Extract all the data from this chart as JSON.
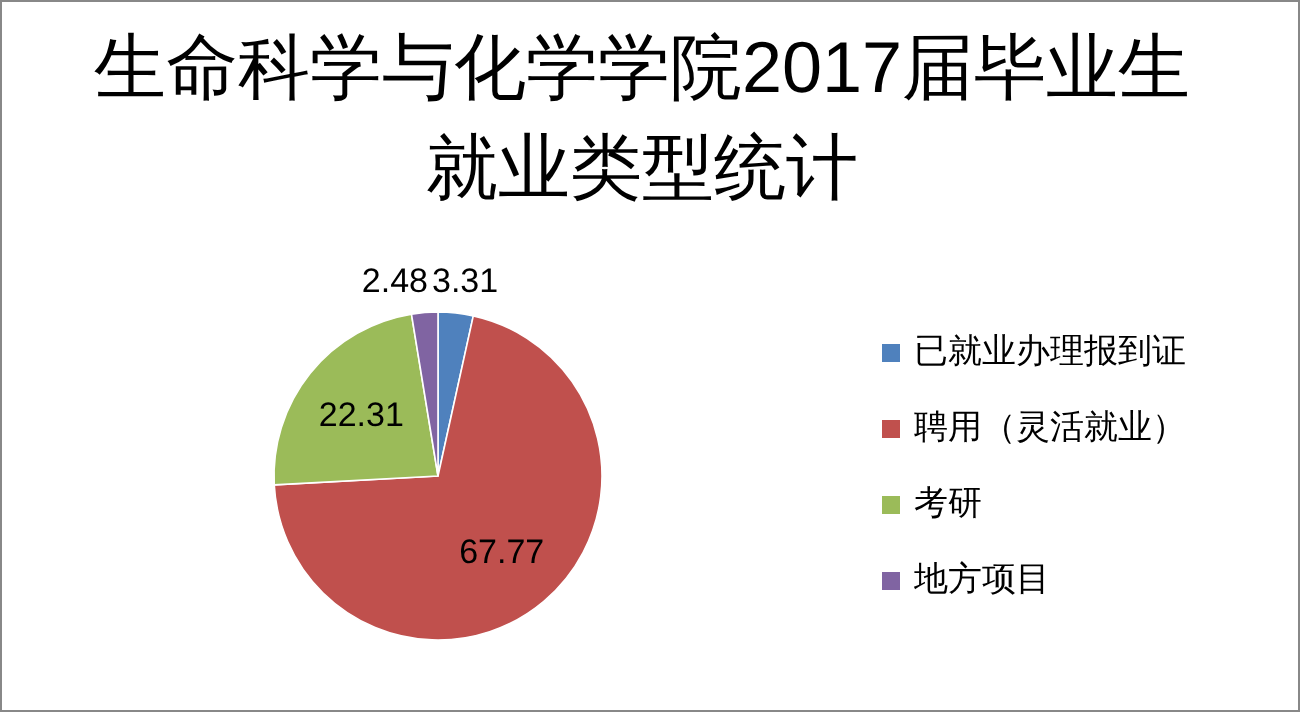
{
  "chart_data": {
    "type": "pie",
    "title": "生命科学与化学学院2017届毕业生就业类型统计",
    "categories": [
      "已就业办理报到证",
      "聘用（灵活就业）",
      "考研",
      "地方项目"
    ],
    "values": [
      3.31,
      67.77,
      22.31,
      2.48
    ],
    "colors": [
      "#4f81bd",
      "#c0504d",
      "#9bbb59",
      "#8064a2"
    ],
    "data_labels": true,
    "legend": "right"
  }
}
